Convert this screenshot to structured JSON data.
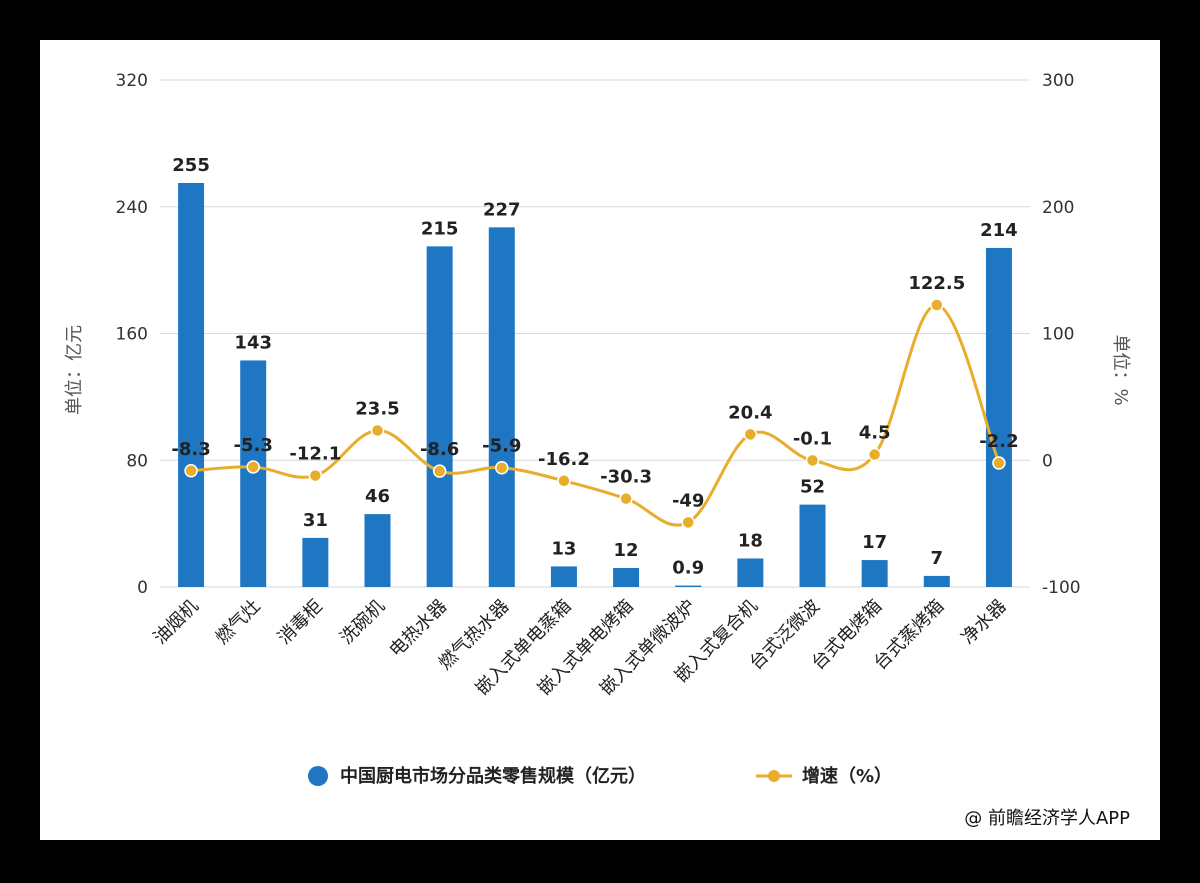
{
  "chart_data": {
    "type": "bar",
    "categories": [
      "油烟机",
      "燃气灶",
      "消毒柜",
      "洗碗机",
      "电热水器",
      "燃气热水器",
      "嵌入式单电蒸箱",
      "嵌入式单电烤箱",
      "嵌入式单微波炉",
      "嵌入式复合机",
      "台式泛微波",
      "台式电烤箱",
      "台式蒸烤箱",
      "净水器"
    ],
    "series": [
      {
        "name": "中国厨电市场分品类零售规模（亿元）",
        "type": "bar",
        "axis": "left",
        "color": "#1f77c4",
        "values": [
          255,
          143,
          31,
          46,
          215,
          227,
          13,
          12,
          0.9,
          18,
          52,
          17,
          7,
          214
        ],
        "labels": [
          "255",
          "143",
          "31",
          "46",
          "215",
          "227",
          "13",
          "12",
          "0.9",
          "18",
          "52",
          "17",
          "7",
          "214"
        ]
      },
      {
        "name": "增速（%）",
        "type": "line",
        "axis": "right",
        "color": "#e8ad2a",
        "values": [
          -8.3,
          -5.3,
          -12.1,
          23.5,
          -8.6,
          -5.9,
          -16.2,
          -30.3,
          -49,
          20.4,
          -0.1,
          4.5,
          122.5,
          -2.2
        ],
        "labels": [
          "-8.3",
          "-5.3",
          "-12.1",
          "23.5",
          "-8.6",
          "-5.9",
          "-16.2",
          "-30.3",
          "-49",
          "20.4",
          "-0.1",
          "4.5",
          "122.5",
          "-2.2"
        ]
      }
    ],
    "ylabel": "单位：亿元",
    "y2label": "单位：%",
    "ylim": [
      0,
      320
    ],
    "y2lim": [
      -100,
      300
    ],
    "yticks": [
      "0",
      "80",
      "160",
      "240",
      "320"
    ],
    "y2ticks": [
      "-100",
      "0",
      "100",
      "200",
      "300"
    ],
    "grid": true,
    "legend_position": "bottom"
  },
  "credit": "@ 前瞻经济学人APP"
}
